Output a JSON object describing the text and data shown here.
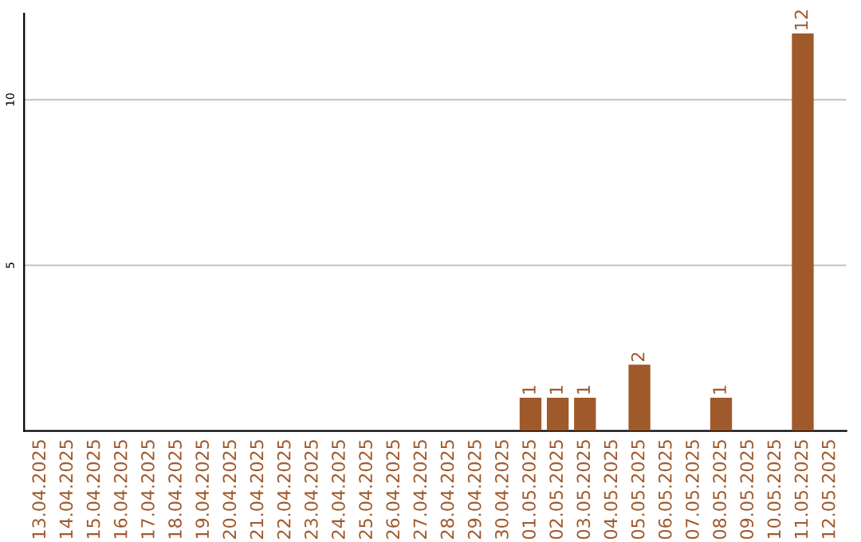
{
  "chart_data": {
    "type": "bar",
    "categories": [
      "13.04.2025",
      "14.04.2025",
      "15.04.2025",
      "16.04.2025",
      "17.04.2025",
      "18.04.2025",
      "19.04.2025",
      "20.04.2025",
      "21.04.2025",
      "22.04.2025",
      "23.04.2025",
      "24.04.2025",
      "25.04.2025",
      "26.04.2025",
      "27.04.2025",
      "28.04.2025",
      "29.04.2025",
      "30.04.2025",
      "01.05.2025",
      "02.05.2025",
      "03.05.2025",
      "04.05.2025",
      "05.05.2025",
      "06.05.2025",
      "07.05.2025",
      "08.05.2025",
      "09.05.2025",
      "10.05.2025",
      "11.05.2025",
      "12.05.2025"
    ],
    "values": [
      0,
      0,
      0,
      0,
      0,
      0,
      0,
      0,
      0,
      0,
      0,
      0,
      0,
      0,
      0,
      0,
      0,
      0,
      1,
      1,
      1,
      0,
      2,
      0,
      0,
      1,
      0,
      0,
      12,
      0
    ],
    "value_labels": [
      null,
      null,
      null,
      null,
      null,
      null,
      null,
      null,
      null,
      null,
      null,
      null,
      null,
      null,
      null,
      null,
      null,
      null,
      "1",
      "1",
      "1",
      null,
      "2",
      null,
      null,
      "1",
      null,
      null,
      "12",
      null
    ],
    "color": "#a0592b",
    "ylim": [
      0,
      12.6
    ],
    "yticks": [
      5,
      10
    ],
    "grid": "y"
  }
}
